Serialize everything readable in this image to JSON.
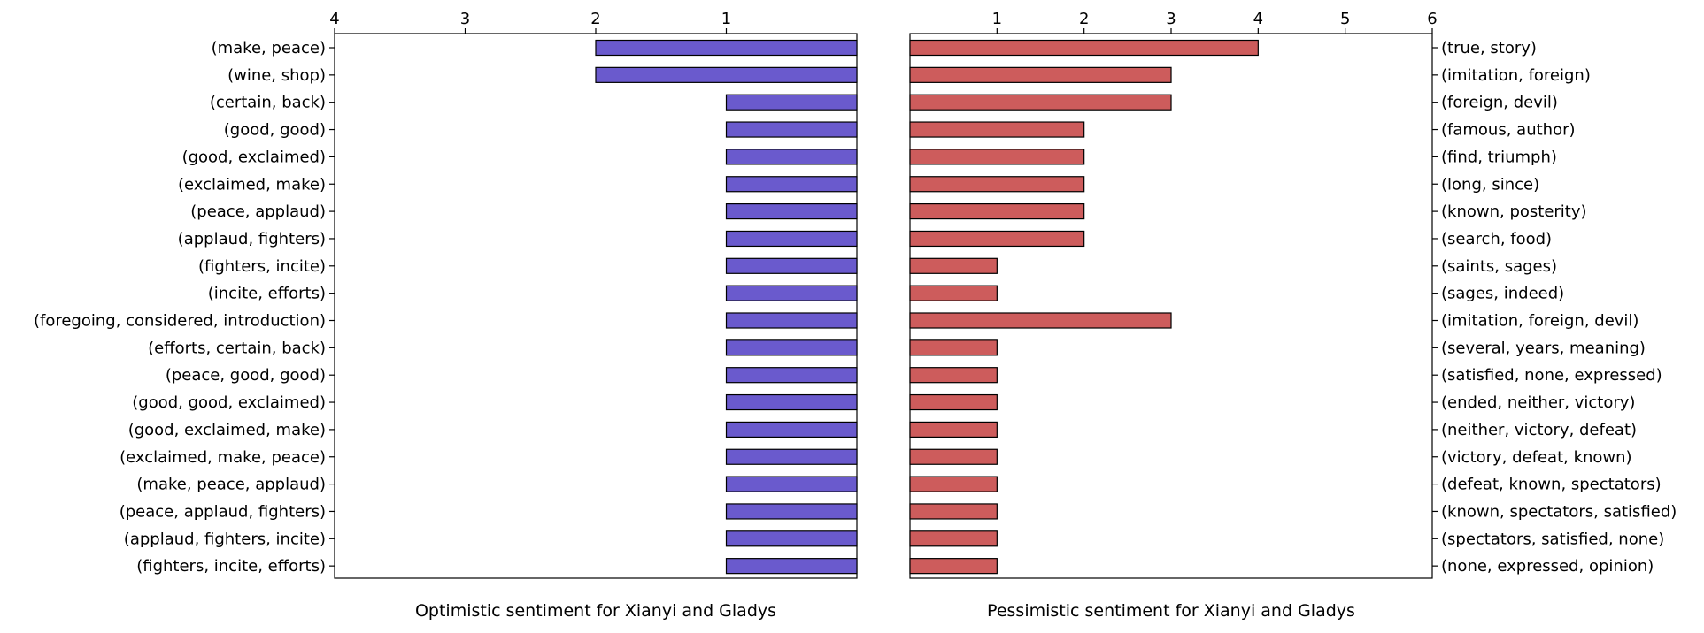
{
  "chart_data": [
    {
      "type": "bar",
      "orientation": "horizontal",
      "direction": "right-to-left",
      "title": "",
      "xlabel": "Optimistic sentiment for Xianyi and Gladys",
      "ylabel": "",
      "xlim": [
        4,
        0
      ],
      "xticks": [
        4,
        3,
        2,
        1
      ],
      "tick_position": "top",
      "label_side": "left",
      "bar_color": "#6a5acd",
      "grid": false,
      "categories": [
        "(make, peace)",
        "(wine, shop)",
        "(certain, back)",
        "(good, good)",
        "(good, exclaimed)",
        "(exclaimed, make)",
        "(peace, applaud)",
        "(applaud, fighters)",
        "(fighters, incite)",
        "(incite, efforts)",
        "(foregoing, considered, introduction)",
        "(efforts, certain, back)",
        "(peace, good, good)",
        "(good, good, exclaimed)",
        "(good, exclaimed, make)",
        "(exclaimed, make, peace)",
        "(make, peace, applaud)",
        "(peace, applaud, fighters)",
        "(applaud, fighters, incite)",
        "(fighters, incite, efforts)"
      ],
      "values": [
        2,
        2,
        1,
        1,
        1,
        1,
        1,
        1,
        1,
        1,
        1,
        1,
        1,
        1,
        1,
        1,
        1,
        1,
        1,
        1
      ]
    },
    {
      "type": "bar",
      "orientation": "horizontal",
      "direction": "left-to-right",
      "title": "",
      "xlabel": "Pessimistic sentiment for Xianyi and Gladys",
      "ylabel": "",
      "xlim": [
        0,
        6
      ],
      "xticks": [
        1,
        2,
        3,
        4,
        5,
        6
      ],
      "tick_position": "top",
      "label_side": "right",
      "bar_color": "#cd5c5c",
      "grid": false,
      "categories": [
        "(true, story)",
        "(imitation, foreign)",
        "(foreign, devil)",
        "(famous, author)",
        "(find, triumph)",
        "(long, since)",
        "(known, posterity)",
        "(search, food)",
        "(saints, sages)",
        "(sages, indeed)",
        "(imitation, foreign, devil)",
        "(several, years, meaning)",
        "(satisfied, none, expressed)",
        "(ended, neither, victory)",
        "(neither, victory, defeat)",
        "(victory, defeat, known)",
        "(defeat, known, spectators)",
        "(known, spectators, satisfied)",
        "(spectators, satisfied, none)",
        "(none, expressed, opinion)"
      ],
      "values": [
        4,
        3,
        3,
        2,
        2,
        2,
        2,
        2,
        1,
        1,
        3,
        1,
        1,
        1,
        1,
        1,
        1,
        1,
        1,
        1
      ]
    }
  ]
}
